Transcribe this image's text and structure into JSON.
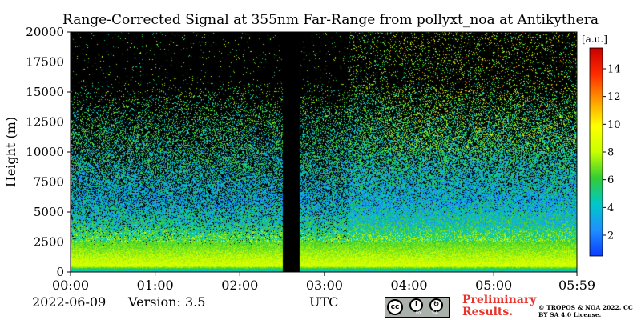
{
  "title": "Range-Corrected Signal at 355nm Far-Range from pollyxt_noa at Antikythera",
  "footer": {
    "date": "2022-06-09",
    "version": "Version: 3.5",
    "preliminary": "Preliminary Results.",
    "copyright": "© TROPOS & NOA 2022. CC BY SA 4.0 License.",
    "cc_by": "BY",
    "cc_sa": "SA"
  },
  "colors": {
    "background_no_data": "#000000",
    "colormap": [
      "#0a3dff",
      "#1e90ff",
      "#00c8c8",
      "#33cc33",
      "#c8ff00",
      "#ffff00",
      "#ff9900",
      "#ff2a00",
      "#c80000"
    ]
  },
  "chart_data": {
    "type": "heatmap",
    "title": "Range-Corrected Signal at 355nm Far-Range from pollyxt_noa at Antikythera",
    "xlabel": "UTC",
    "ylabel": "Height (m)",
    "x_ticks": [
      "00:00",
      "01:00",
      "02:00",
      "03:00",
      "04:00",
      "05:00",
      "05:59"
    ],
    "x_range_hours": [
      0,
      5.983
    ],
    "y_ticks": [
      0,
      2500,
      5000,
      7500,
      10000,
      12500,
      15000,
      17500,
      20000
    ],
    "y_range": [
      0,
      20000
    ],
    "colorbar": {
      "label": "[a.u.]",
      "ticks": [
        2,
        4,
        6,
        8,
        10,
        12,
        14
      ],
      "range": [
        0.5,
        15.5
      ]
    },
    "data_gap_utc": [
      "02:30",
      "02:42"
    ],
    "signal_profile_by_height": [
      {
        "height_m": 150,
        "value": 4.5,
        "note": "near-ground layer"
      },
      {
        "height_m": 500,
        "value": 8.5
      },
      {
        "height_m": 1500,
        "value": 7.5
      },
      {
        "height_m": 2500,
        "value": 6.5
      },
      {
        "height_m": 4000,
        "value": 4.5
      },
      {
        "height_m": 6000,
        "value": 3.5
      },
      {
        "height_m": 9000,
        "value": 4.5
      },
      {
        "height_m": 13000,
        "value": 5.5
      },
      {
        "height_m": 18000,
        "value": 7.0
      }
    ],
    "grid": false,
    "colorbar_position": "right"
  }
}
